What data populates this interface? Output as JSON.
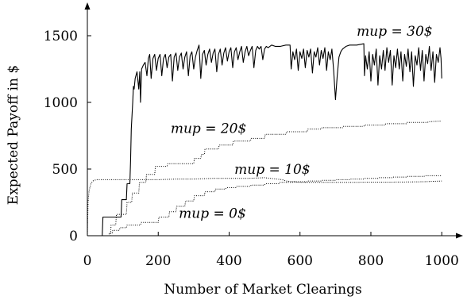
{
  "chart_data": {
    "type": "line",
    "title": "",
    "xlabel": "Number of Market Clearings",
    "ylabel": "Expected Payoff in $",
    "xlim": [
      0,
      1060
    ],
    "ylim": [
      0,
      1750
    ],
    "xticks": [
      0,
      200,
      400,
      600,
      800,
      1000
    ],
    "yticks": [
      0,
      500,
      1000,
      1500
    ],
    "xtick_labels": [
      "0",
      "200",
      "400",
      "600",
      "800",
      "1000"
    ],
    "ytick_labels": [
      "0",
      "500",
      "1000",
      "1500"
    ],
    "grid": false,
    "legend": "inline labels",
    "series": [
      {
        "name": "mup = 30$",
        "style": "solid",
        "color": "#000000",
        "points": [
          [
            0,
            0
          ],
          [
            42,
            0
          ],
          [
            44,
            140
          ],
          [
            95,
            140
          ],
          [
            97,
            270
          ],
          [
            110,
            270
          ],
          [
            112,
            390
          ],
          [
            120,
            390
          ],
          [
            122,
            560
          ],
          [
            124,
            800
          ],
          [
            126,
            900
          ],
          [
            128,
            1000
          ],
          [
            130,
            1120
          ],
          [
            132,
            1100
          ],
          [
            135,
            1180
          ],
          [
            140,
            1230
          ],
          [
            145,
            1100
          ],
          [
            148,
            1230
          ],
          [
            150,
            1000
          ],
          [
            153,
            1250
          ],
          [
            158,
            1280
          ],
          [
            163,
            1300
          ],
          [
            168,
            1200
          ],
          [
            172,
            1330
          ],
          [
            176,
            1360
          ],
          [
            180,
            1180
          ],
          [
            185,
            1330
          ],
          [
            190,
            1360
          ],
          [
            195,
            1240
          ],
          [
            200,
            1330
          ],
          [
            205,
            1360
          ],
          [
            210,
            1200
          ],
          [
            215,
            1330
          ],
          [
            220,
            1360
          ],
          [
            225,
            1260
          ],
          [
            230,
            1340
          ],
          [
            235,
            1360
          ],
          [
            240,
            1160
          ],
          [
            245,
            1340
          ],
          [
            250,
            1370
          ],
          [
            255,
            1240
          ],
          [
            260,
            1340
          ],
          [
            265,
            1370
          ],
          [
            270,
            1250
          ],
          [
            275,
            1340
          ],
          [
            280,
            1380
          ],
          [
            285,
            1200
          ],
          [
            290,
            1350
          ],
          [
            295,
            1380
          ],
          [
            300,
            1250
          ],
          [
            305,
            1340
          ],
          [
            310,
            1390
          ],
          [
            315,
            1430
          ],
          [
            320,
            1180
          ],
          [
            325,
            1360
          ],
          [
            330,
            1390
          ],
          [
            335,
            1280
          ],
          [
            340,
            1360
          ],
          [
            345,
            1400
          ],
          [
            350,
            1300
          ],
          [
            355,
            1370
          ],
          [
            360,
            1400
          ],
          [
            365,
            1230
          ],
          [
            370,
            1360
          ],
          [
            375,
            1400
          ],
          [
            380,
            1280
          ],
          [
            385,
            1370
          ],
          [
            390,
            1410
          ],
          [
            395,
            1310
          ],
          [
            400,
            1380
          ],
          [
            405,
            1410
          ],
          [
            410,
            1260
          ],
          [
            415,
            1380
          ],
          [
            420,
            1410
          ],
          [
            425,
            1320
          ],
          [
            430,
            1380
          ],
          [
            435,
            1420
          ],
          [
            440,
            1300
          ],
          [
            445,
            1380
          ],
          [
            450,
            1420
          ],
          [
            455,
            1350
          ],
          [
            460,
            1390
          ],
          [
            465,
            1420
          ],
          [
            470,
            1260
          ],
          [
            475,
            1390
          ],
          [
            480,
            1420
          ],
          [
            485,
            1400
          ],
          [
            490,
            1420
          ],
          [
            495,
            1320
          ],
          [
            500,
            1400
          ],
          [
            505,
            1420
          ],
          [
            510,
            1410
          ],
          [
            520,
            1430
          ],
          [
            530,
            1420
          ],
          [
            545,
            1420
          ],
          [
            560,
            1430
          ],
          [
            572,
            1430
          ],
          [
            575,
            1250
          ],
          [
            580,
            1380
          ],
          [
            585,
            1320
          ],
          [
            590,
            1400
          ],
          [
            595,
            1240
          ],
          [
            600,
            1380
          ],
          [
            605,
            1330
          ],
          [
            610,
            1400
          ],
          [
            615,
            1260
          ],
          [
            620,
            1390
          ],
          [
            625,
            1340
          ],
          [
            630,
            1400
          ],
          [
            635,
            1220
          ],
          [
            640,
            1380
          ],
          [
            645,
            1340
          ],
          [
            650,
            1410
          ],
          [
            655,
            1280
          ],
          [
            660,
            1390
          ],
          [
            665,
            1330
          ],
          [
            670,
            1410
          ],
          [
            675,
            1240
          ],
          [
            680,
            1380
          ],
          [
            685,
            1320
          ],
          [
            690,
            1400
          ],
          [
            695,
            1240
          ],
          [
            700,
            1020
          ],
          [
            705,
            1200
          ],
          [
            710,
            1340
          ],
          [
            715,
            1380
          ],
          [
            720,
            1400
          ],
          [
            725,
            1410
          ],
          [
            730,
            1420
          ],
          [
            740,
            1430
          ],
          [
            760,
            1430
          ],
          [
            780,
            1440
          ],
          [
            782,
            1200
          ],
          [
            785,
            1350
          ],
          [
            790,
            1250
          ],
          [
            795,
            1380
          ],
          [
            800,
            1160
          ],
          [
            805,
            1360
          ],
          [
            810,
            1280
          ],
          [
            815,
            1400
          ],
          [
            820,
            1130
          ],
          [
            825,
            1350
          ],
          [
            830,
            1250
          ],
          [
            835,
            1390
          ],
          [
            840,
            1240
          ],
          [
            845,
            1410
          ],
          [
            850,
            1300
          ],
          [
            855,
            1390
          ],
          [
            860,
            1130
          ],
          [
            865,
            1350
          ],
          [
            870,
            1260
          ],
          [
            875,
            1400
          ],
          [
            880,
            1250
          ],
          [
            885,
            1380
          ],
          [
            890,
            1160
          ],
          [
            895,
            1360
          ],
          [
            900,
            1270
          ],
          [
            905,
            1400
          ],
          [
            910,
            1230
          ],
          [
            915,
            1380
          ],
          [
            920,
            1120
          ],
          [
            925,
            1350
          ],
          [
            930,
            1280
          ],
          [
            935,
            1410
          ],
          [
            940,
            1240
          ],
          [
            945,
            1390
          ],
          [
            950,
            1160
          ],
          [
            955,
            1360
          ],
          [
            960,
            1290
          ],
          [
            965,
            1420
          ],
          [
            970,
            1240
          ],
          [
            975,
            1380
          ],
          [
            980,
            1150
          ],
          [
            985,
            1360
          ],
          [
            990,
            1300
          ],
          [
            995,
            1410
          ],
          [
            998,
            1330
          ],
          [
            1000,
            1180
          ]
        ]
      },
      {
        "name": "mup = 20$",
        "style": "dotted",
        "color": "#000000",
        "points": [
          [
            0,
            0
          ],
          [
            65,
            0
          ],
          [
            67,
            80
          ],
          [
            80,
            80
          ],
          [
            82,
            160
          ],
          [
            110,
            160
          ],
          [
            112,
            250
          ],
          [
            125,
            250
          ],
          [
            127,
            320
          ],
          [
            145,
            320
          ],
          [
            147,
            400
          ],
          [
            165,
            400
          ],
          [
            167,
            460
          ],
          [
            190,
            460
          ],
          [
            192,
            520
          ],
          [
            225,
            520
          ],
          [
            227,
            540
          ],
          [
            300,
            540
          ],
          [
            302,
            580
          ],
          [
            320,
            580
          ],
          [
            322,
            610
          ],
          [
            330,
            610
          ],
          [
            332,
            650
          ],
          [
            370,
            650
          ],
          [
            372,
            680
          ],
          [
            410,
            680
          ],
          [
            412,
            710
          ],
          [
            460,
            710
          ],
          [
            462,
            730
          ],
          [
            500,
            730
          ],
          [
            502,
            760
          ],
          [
            560,
            760
          ],
          [
            562,
            780
          ],
          [
            620,
            780
          ],
          [
            622,
            800
          ],
          [
            660,
            800
          ],
          [
            662,
            810
          ],
          [
            720,
            810
          ],
          [
            722,
            820
          ],
          [
            780,
            820
          ],
          [
            782,
            830
          ],
          [
            840,
            830
          ],
          [
            842,
            840
          ],
          [
            900,
            840
          ],
          [
            902,
            850
          ],
          [
            960,
            850
          ],
          [
            962,
            855
          ],
          [
            1000,
            860
          ]
        ]
      },
      {
        "name": "mup = 10$",
        "style": "dotted",
        "color": "#000000",
        "points": [
          [
            0,
            0
          ],
          [
            2,
            250
          ],
          [
            5,
            340
          ],
          [
            10,
            390
          ],
          [
            15,
            410
          ],
          [
            25,
            420
          ],
          [
            40,
            420
          ],
          [
            70,
            420
          ],
          [
            100,
            420
          ],
          [
            130,
            420
          ],
          [
            160,
            420
          ],
          [
            200,
            420
          ],
          [
            250,
            425
          ],
          [
            300,
            425
          ],
          [
            350,
            430
          ],
          [
            400,
            430
          ],
          [
            450,
            430
          ],
          [
            500,
            435
          ],
          [
            550,
            420
          ],
          [
            560,
            410
          ],
          [
            600,
            400
          ],
          [
            650,
            400
          ],
          [
            700,
            400
          ],
          [
            750,
            400
          ],
          [
            800,
            402
          ],
          [
            850,
            402
          ],
          [
            900,
            403
          ],
          [
            950,
            405
          ],
          [
            1000,
            410
          ]
        ]
      },
      {
        "name": "mup = 0$",
        "style": "dotted",
        "color": "#000000",
        "points": [
          [
            0,
            0
          ],
          [
            60,
            0
          ],
          [
            62,
            20
          ],
          [
            70,
            20
          ],
          [
            72,
            40
          ],
          [
            90,
            40
          ],
          [
            92,
            60
          ],
          [
            110,
            60
          ],
          [
            112,
            80
          ],
          [
            150,
            80
          ],
          [
            152,
            100
          ],
          [
            200,
            100
          ],
          [
            202,
            140
          ],
          [
            230,
            140
          ],
          [
            232,
            180
          ],
          [
            250,
            180
          ],
          [
            252,
            220
          ],
          [
            275,
            220
          ],
          [
            277,
            260
          ],
          [
            300,
            260
          ],
          [
            302,
            300
          ],
          [
            330,
            300
          ],
          [
            332,
            330
          ],
          [
            360,
            330
          ],
          [
            362,
            350
          ],
          [
            390,
            350
          ],
          [
            392,
            360
          ],
          [
            420,
            360
          ],
          [
            422,
            370
          ],
          [
            460,
            370
          ],
          [
            462,
            380
          ],
          [
            500,
            380
          ],
          [
            502,
            390
          ],
          [
            540,
            390
          ],
          [
            542,
            400
          ],
          [
            580,
            400
          ],
          [
            582,
            405
          ],
          [
            620,
            405
          ],
          [
            622,
            410
          ],
          [
            660,
            410
          ],
          [
            662,
            415
          ],
          [
            700,
            415
          ],
          [
            702,
            420
          ],
          [
            740,
            420
          ],
          [
            742,
            425
          ],
          [
            780,
            425
          ],
          [
            782,
            430
          ],
          [
            820,
            430
          ],
          [
            822,
            435
          ],
          [
            860,
            435
          ],
          [
            862,
            440
          ],
          [
            900,
            440
          ],
          [
            902,
            445
          ],
          [
            950,
            445
          ],
          [
            952,
            450
          ],
          [
            1000,
            450
          ]
        ]
      }
    ],
    "annotations": [
      {
        "text": "mup = 30$",
        "x": 760,
        "y": 1500
      },
      {
        "text": "mup = 20$",
        "x": 235,
        "y": 770
      },
      {
        "text": "mup = 10$",
        "x": 415,
        "y": 465
      },
      {
        "text": "mup = 0$",
        "x": 258,
        "y": 135
      }
    ]
  }
}
